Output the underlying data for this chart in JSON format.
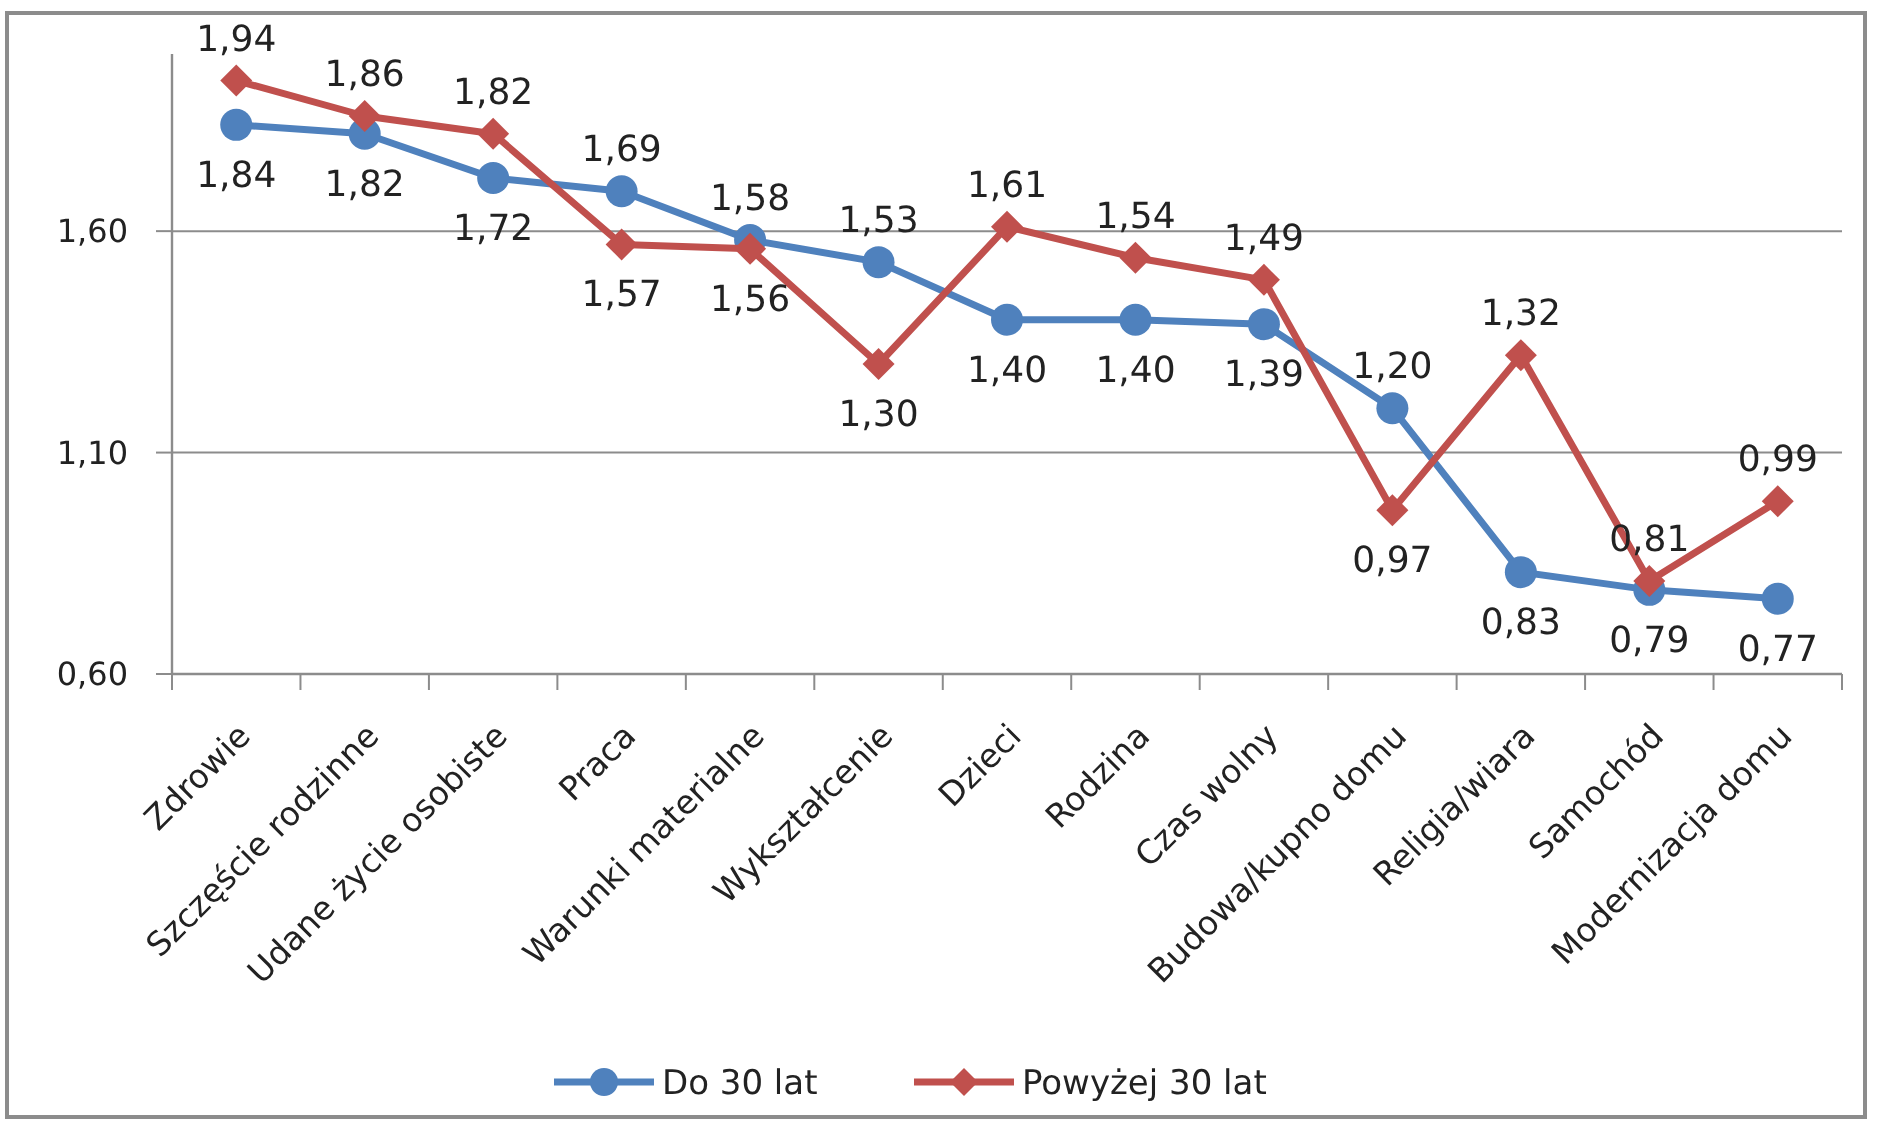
{
  "chart_data": {
    "type": "line",
    "categories": [
      "Zdrowie",
      "Szczęście rodzinne",
      "Udane życie osobiste",
      "Praca",
      "Warunki materialne",
      "Wykształcenie",
      "Dzieci",
      "Rodzina",
      "Czas wolny",
      "Budowa/kupno domu",
      "Religia/wiara",
      "Samochód",
      "Modernizacja domu"
    ],
    "series": [
      {
        "name": "Do 30 lat",
        "color": "#4f81bd",
        "marker": "circle",
        "values": [
          1.84,
          1.82,
          1.72,
          1.69,
          1.58,
          1.53,
          1.4,
          1.4,
          1.39,
          1.2,
          0.83,
          0.79,
          0.77
        ],
        "value_labels": [
          "1,84",
          "1,82",
          "1,72",
          "1,69",
          "1,58",
          "1,53",
          "1,40",
          "1,40",
          "1,39",
          "1,20",
          "0,83",
          "0,79",
          "0,77"
        ]
      },
      {
        "name": "Powyżej 30 lat",
        "color": "#c0504d",
        "marker": "diamond",
        "values": [
          1.94,
          1.86,
          1.82,
          1.57,
          1.56,
          1.3,
          1.61,
          1.54,
          1.49,
          0.97,
          1.32,
          0.81,
          0.99
        ],
        "value_labels": [
          "1,94",
          "1,86",
          "1,82",
          "1,57",
          "1,56",
          "1,30",
          "1,61",
          "1,54",
          "1,49",
          "0,97",
          "1,32",
          "0,81",
          "0,99"
        ]
      }
    ],
    "ylim": [
      0.6,
      2.0
    ],
    "yticks": [
      {
        "value": 0.6,
        "label": "0,60"
      },
      {
        "value": 1.1,
        "label": "1,10"
      },
      {
        "value": 1.6,
        "label": "1,60"
      }
    ],
    "grid": "y",
    "legend": "bottom",
    "line_style": "solid"
  }
}
